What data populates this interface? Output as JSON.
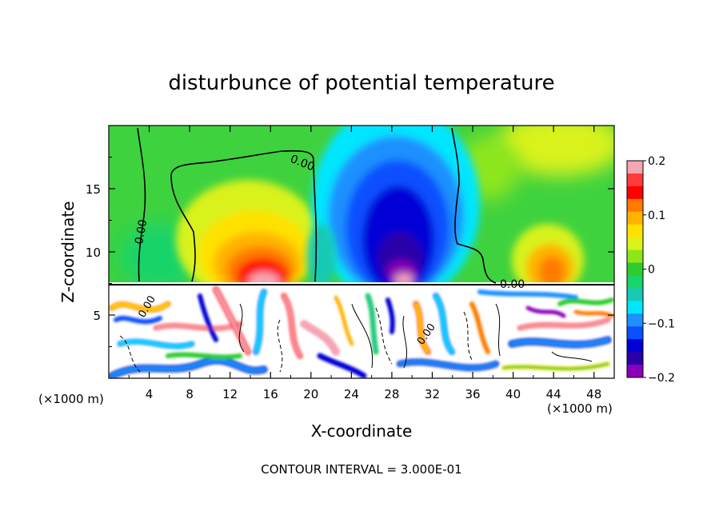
{
  "chart_data": {
    "type": "heatmap",
    "title": "disturbunce of potential temperature",
    "xlabel": "X-coordinate",
    "ylabel": "Z-coordinate",
    "x_unit_label": "(×1000 m)",
    "y_unit_label": "(×1000 m)",
    "xlim": [
      0,
      50
    ],
    "ylim": [
      0,
      20
    ],
    "x_ticks": [
      4,
      8,
      12,
      16,
      20,
      24,
      28,
      32,
      36,
      40,
      44,
      48
    ],
    "y_ticks": [
      5,
      10,
      15
    ],
    "colorbar": {
      "range": [
        -0.2,
        0.2
      ],
      "tick_values": [
        0.2,
        0.1,
        0,
        -0.1,
        -0.2
      ],
      "tick_labels": [
        "0.2",
        "0.1",
        "0",
        "−0.1",
        "−0.2"
      ],
      "colors": [
        "#f4a6b4",
        "#ff3b3b",
        "#ff0000",
        "#ff7a00",
        "#ffb300",
        "#ffe100",
        "#d9f21a",
        "#8ee61a",
        "#2ecc2e",
        "#18d46b",
        "#18c9b4",
        "#00e6ff",
        "#1e90ff",
        "#0b4fff",
        "#0000d6",
        "#2a00a8",
        "#8a00b8"
      ]
    },
    "contour_labels": [
      "0.00",
      "0.00",
      "0.00",
      "0.00",
      "0.00"
    ],
    "contour_interval_note": "CONTOUR INTERVAL = 3.000E-01",
    "features": [
      {
        "name": "warm anomaly",
        "x": 15,
        "z": 9.5,
        "value": 0.2
      },
      {
        "name": "warm anomaly",
        "x": 44,
        "z": 9.0,
        "value": 0.12
      },
      {
        "name": "cold anomaly",
        "x": 29,
        "z": 12,
        "value": -0.2
      },
      {
        "name": "tropopause layer",
        "z": 7.3
      }
    ]
  }
}
